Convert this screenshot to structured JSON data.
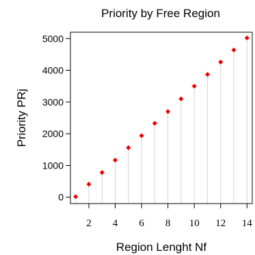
{
  "chart_data": {
    "type": "scatter",
    "title": "Priority by Free Region",
    "xlabel": "Region Lenght Nf",
    "ylabel": "Priority PRj",
    "xlim": [
      0.6,
      14.4
    ],
    "ylim": [
      -200,
      5200
    ],
    "x_ticks": [
      2,
      4,
      6,
      8,
      10,
      12,
      14
    ],
    "y_ticks": [
      0,
      1000,
      2000,
      3000,
      4000,
      5000
    ],
    "grid": false,
    "drop_lines": true,
    "series": [
      {
        "x": [
          1,
          2,
          3,
          4,
          5,
          6,
          7,
          8,
          9,
          10,
          11,
          12,
          13,
          14
        ],
        "y": [
          20,
          410,
          780,
          1170,
          1560,
          1940,
          2330,
          2700,
          3100,
          3500,
          3870,
          4260,
          4640,
          5020
        ]
      }
    ],
    "colors": {
      "point": "#ee0000",
      "drop_line": "#d3d3d3",
      "axis": "#000000"
    }
  }
}
